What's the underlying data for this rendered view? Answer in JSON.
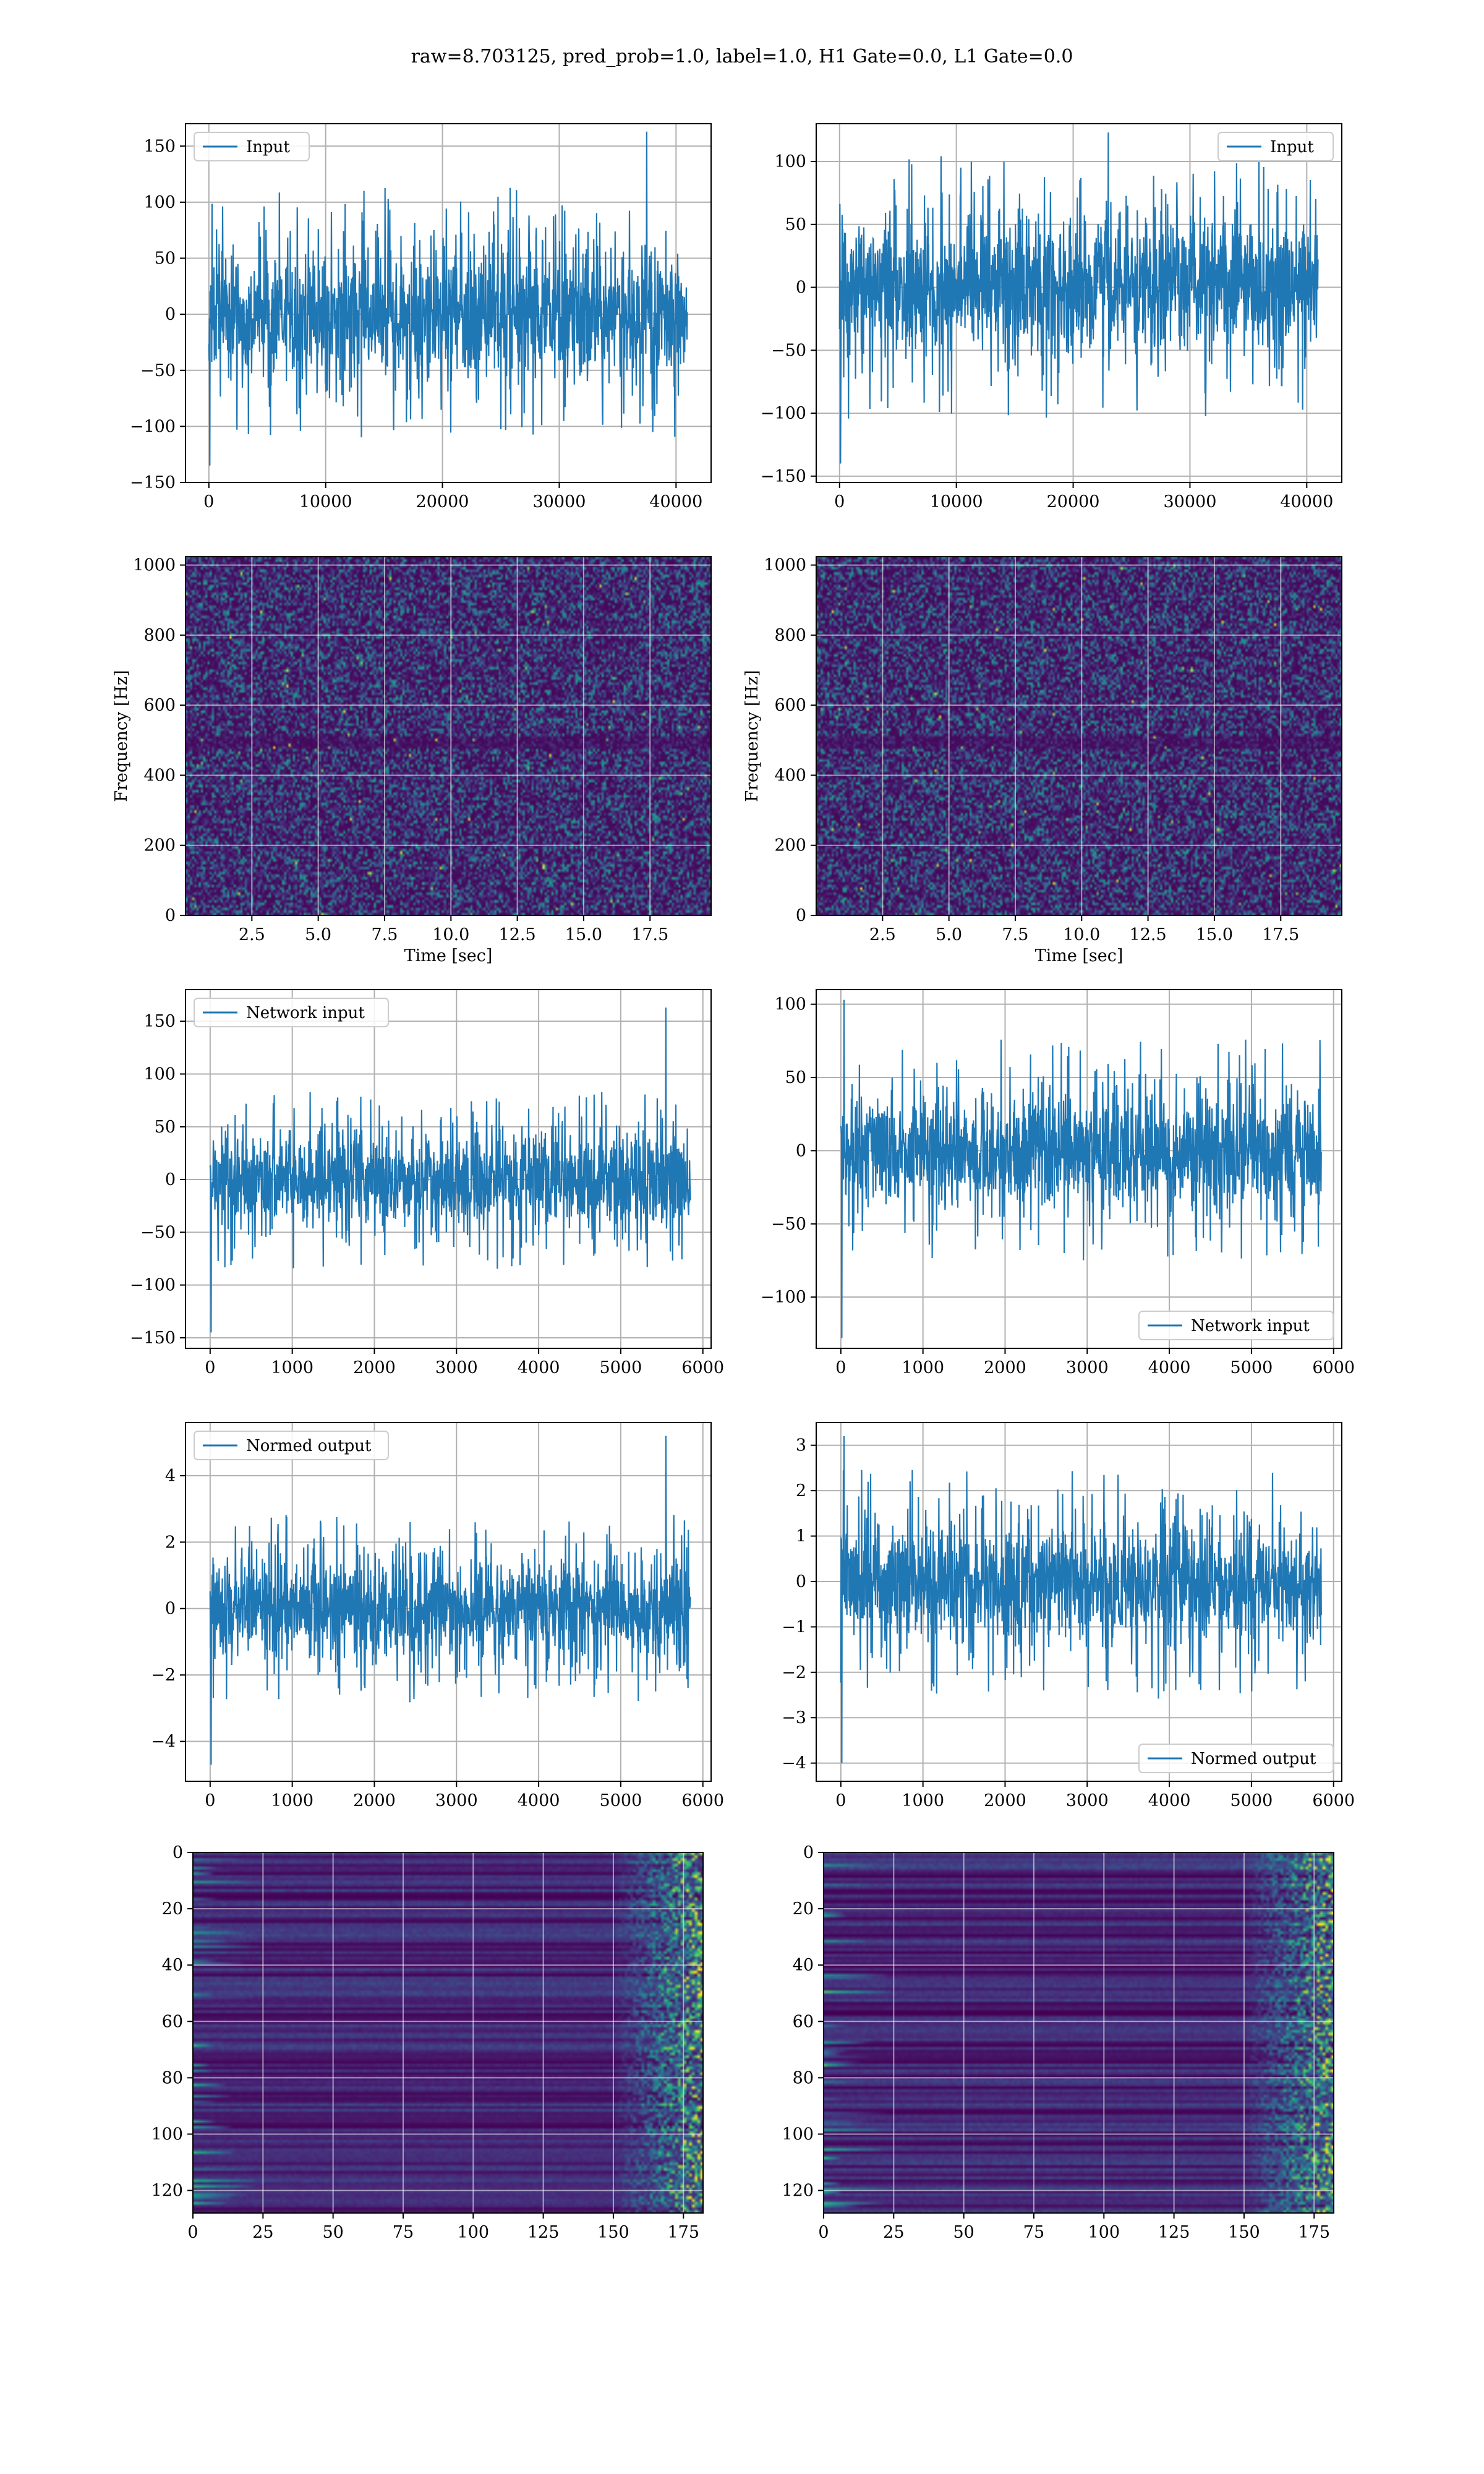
{
  "figure": {
    "suptitle": "raw=8.703125, pred_prob=1.0, label=1.0, H1 Gate=0.0, L1 Gate=0.0",
    "line_color": "#1f77b4"
  },
  "chart_data": [
    {
      "id": "h1-input",
      "type": "line",
      "title": "",
      "xlabel": "",
      "ylabel": "",
      "xlim": [
        -2000,
        43000
      ],
      "ylim": [
        -150,
        170
      ],
      "xticks": [
        0,
        10000,
        20000,
        30000,
        40000
      ],
      "xtick_labels": [
        "0",
        "10000",
        "20000",
        "30000",
        "40000"
      ],
      "yticks": [
        -150,
        -100,
        -50,
        0,
        50,
        100,
        150
      ],
      "ytick_labels": [
        "−150",
        "−100",
        "−50",
        "0",
        "50",
        "100",
        "150"
      ],
      "grid": true,
      "legend": "upper left",
      "series": [
        {
          "name": "Input",
          "x_range": [
            0,
            40960
          ],
          "core_amplitude": 60,
          "peak_min": -135,
          "peak_max": 163,
          "note_peak_at": 37500
        }
      ]
    },
    {
      "id": "l1-input",
      "type": "line",
      "title": "",
      "xlabel": "",
      "ylabel": "",
      "xlim": [
        -2000,
        43000
      ],
      "ylim": [
        -155,
        130
      ],
      "xticks": [
        0,
        10000,
        20000,
        30000,
        40000
      ],
      "xtick_labels": [
        "0",
        "10000",
        "20000",
        "30000",
        "40000"
      ],
      "yticks": [
        -150,
        -100,
        -50,
        0,
        50,
        100
      ],
      "ytick_labels": [
        "−150",
        "−100",
        "−50",
        "0",
        "50",
        "100"
      ],
      "grid": true,
      "legend": "upper right",
      "series": [
        {
          "name": "Input",
          "x_range": [
            0,
            40960
          ],
          "core_amplitude": 55,
          "peak_min": -140,
          "peak_max": 123,
          "note_peak_at": 23000
        }
      ]
    },
    {
      "id": "h1-spectrogram",
      "type": "heatmap",
      "title": "",
      "xlabel": "Time [sec]",
      "ylabel": "Frequency [Hz]",
      "xlim": [
        0,
        19.8
      ],
      "ylim": [
        0,
        1024
      ],
      "xticks": [
        2.5,
        5.0,
        7.5,
        10.0,
        12.5,
        15.0,
        17.5
      ],
      "xtick_labels": [
        "2.5",
        "5.0",
        "7.5",
        "10.0",
        "12.5",
        "15.0",
        "17.5"
      ],
      "yticks": [
        0,
        200,
        400,
        600,
        800,
        1000
      ],
      "ytick_labels": [
        "0",
        "200",
        "400",
        "600",
        "800",
        "1000"
      ],
      "grid": true,
      "colormap": "viridis"
    },
    {
      "id": "l1-spectrogram",
      "type": "heatmap",
      "title": "",
      "xlabel": "Time [sec]",
      "ylabel": "Frequency [Hz]",
      "xlim": [
        0,
        19.8
      ],
      "ylim": [
        0,
        1024
      ],
      "xticks": [
        2.5,
        5.0,
        7.5,
        10.0,
        12.5,
        15.0,
        17.5
      ],
      "xtick_labels": [
        "2.5",
        "5.0",
        "7.5",
        "10.0",
        "12.5",
        "15.0",
        "17.5"
      ],
      "yticks": [
        0,
        200,
        400,
        600,
        800,
        1000
      ],
      "ytick_labels": [
        "0",
        "200",
        "400",
        "600",
        "800",
        "1000"
      ],
      "grid": true,
      "colormap": "viridis"
    },
    {
      "id": "h1-network-input",
      "type": "line",
      "title": "",
      "xlabel": "",
      "ylabel": "",
      "xlim": [
        -300,
        6100
      ],
      "ylim": [
        -160,
        180
      ],
      "xticks": [
        0,
        1000,
        2000,
        3000,
        4000,
        5000,
        6000
      ],
      "xtick_labels": [
        "0",
        "1000",
        "2000",
        "3000",
        "4000",
        "5000",
        "6000"
      ],
      "yticks": [
        -150,
        -100,
        -50,
        0,
        50,
        100,
        150
      ],
      "ytick_labels": [
        "−150",
        "−100",
        "−50",
        "0",
        "50",
        "100",
        "150"
      ],
      "grid": true,
      "legend": "upper left",
      "series": [
        {
          "name": "Network input",
          "x_range": [
            0,
            5850
          ],
          "core_amplitude": 45,
          "peak_min": -145,
          "peak_max": 163,
          "note_peak_at": 5550
        }
      ]
    },
    {
      "id": "l1-network-input",
      "type": "line",
      "title": "",
      "xlabel": "",
      "ylabel": "",
      "xlim": [
        -300,
        6100
      ],
      "ylim": [
        -135,
        110
      ],
      "xticks": [
        0,
        1000,
        2000,
        3000,
        4000,
        5000,
        6000
      ],
      "xtick_labels": [
        "0",
        "1000",
        "2000",
        "3000",
        "4000",
        "5000",
        "6000"
      ],
      "yticks": [
        -100,
        -50,
        0,
        50,
        100
      ],
      "ytick_labels": [
        "−100",
        "−50",
        "0",
        "50",
        "100"
      ],
      "grid": true,
      "legend": "lower right",
      "series": [
        {
          "name": "Network input",
          "x_range": [
            0,
            5850
          ],
          "core_amplitude": 40,
          "peak_min": -128,
          "peak_max": 103,
          "note_peak_at": 40
        }
      ]
    },
    {
      "id": "h1-normed-output",
      "type": "line",
      "title": "",
      "xlabel": "",
      "ylabel": "",
      "xlim": [
        -300,
        6100
      ],
      "ylim": [
        -5.2,
        5.6
      ],
      "xticks": [
        0,
        1000,
        2000,
        3000,
        4000,
        5000,
        6000
      ],
      "xtick_labels": [
        "0",
        "1000",
        "2000",
        "3000",
        "4000",
        "5000",
        "6000"
      ],
      "yticks": [
        -4,
        -2,
        0,
        2,
        4
      ],
      "ytick_labels": [
        "−4",
        "−2",
        "0",
        "2",
        "4"
      ],
      "grid": true,
      "legend": "upper left",
      "series": [
        {
          "name": "Normed output",
          "x_range": [
            0,
            5850
          ],
          "core_amplitude": 1.5,
          "peak_min": -4.7,
          "peak_max": 5.2,
          "note_peak_at": 5550
        }
      ]
    },
    {
      "id": "l1-normed-output",
      "type": "line",
      "title": "",
      "xlabel": "",
      "ylabel": "",
      "xlim": [
        -300,
        6100
      ],
      "ylim": [
        -4.4,
        3.5
      ],
      "xticks": [
        0,
        1000,
        2000,
        3000,
        4000,
        5000,
        6000
      ],
      "xtick_labels": [
        "0",
        "1000",
        "2000",
        "3000",
        "4000",
        "5000",
        "6000"
      ],
      "yticks": [
        -4,
        -3,
        -2,
        -1,
        0,
        1,
        2,
        3
      ],
      "ytick_labels": [
        "−4",
        "−3",
        "−2",
        "−1",
        "0",
        "1",
        "2",
        "3"
      ],
      "grid": true,
      "legend": "lower right",
      "series": [
        {
          "name": "Normed output",
          "x_range": [
            0,
            5850
          ],
          "core_amplitude": 1.3,
          "peak_min": -4.0,
          "peak_max": 3.2,
          "note_peak_at": 40
        }
      ]
    },
    {
      "id": "h1-feature-map",
      "type": "heatmap",
      "title": "",
      "xlabel": "",
      "ylabel": "",
      "xlim": [
        0,
        182
      ],
      "ylim": [
        128,
        0
      ],
      "xticks": [
        0,
        25,
        50,
        75,
        100,
        125,
        150,
        175
      ],
      "xtick_labels": [
        "0",
        "25",
        "50",
        "75",
        "100",
        "125",
        "150",
        "175"
      ],
      "yticks": [
        0,
        20,
        40,
        60,
        80,
        100,
        120
      ],
      "ytick_labels": [
        "0",
        "20",
        "40",
        "60",
        "80",
        "100",
        "120"
      ],
      "grid": true,
      "colormap": "viridis"
    },
    {
      "id": "l1-feature-map",
      "type": "heatmap",
      "title": "",
      "xlabel": "",
      "ylabel": "",
      "xlim": [
        0,
        182
      ],
      "ylim": [
        128,
        0
      ],
      "xticks": [
        0,
        25,
        50,
        75,
        100,
        125,
        150,
        175
      ],
      "xtick_labels": [
        "0",
        "25",
        "50",
        "75",
        "100",
        "125",
        "150",
        "175"
      ],
      "yticks": [
        0,
        20,
        40,
        60,
        80,
        100,
        120
      ],
      "ytick_labels": [
        "0",
        "20",
        "40",
        "60",
        "80",
        "100",
        "120"
      ],
      "grid": true,
      "colormap": "viridis"
    }
  ]
}
